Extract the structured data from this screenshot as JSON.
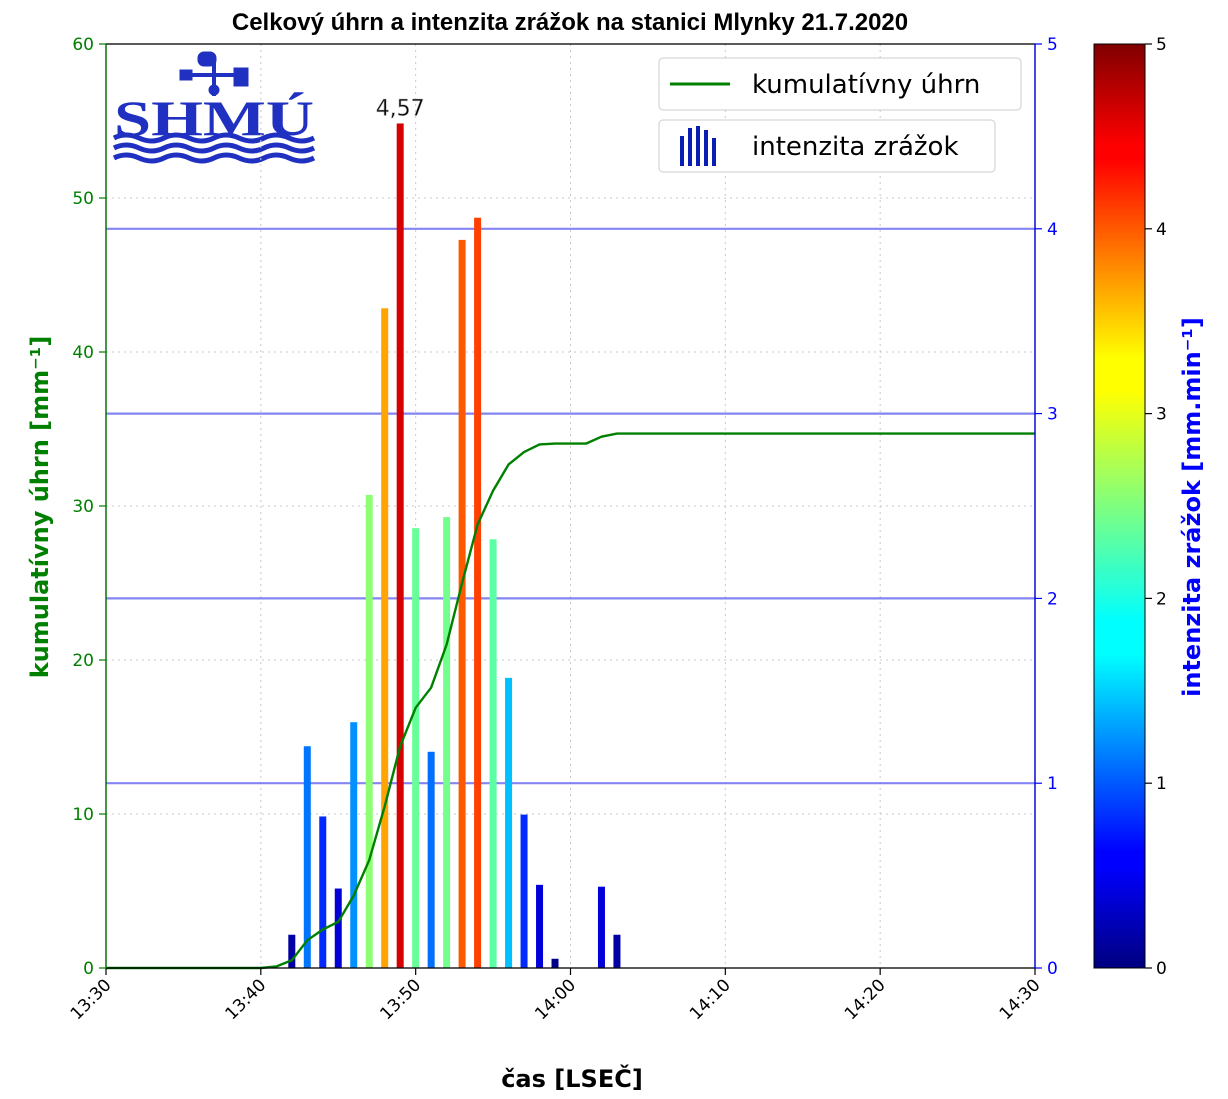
{
  "chart_data": {
    "type": "bar+line",
    "title": "Celkový úhrn a intenzita zrážok na stanici Mlynky 21.7.2020",
    "xlabel": "čas [LSEČ]",
    "ylabel_left": "kumulatívny úhrn [mm⁻¹]",
    "ylabel_right": "intenzita zrážok [mm.min⁻¹]",
    "xlim": [
      "13:30",
      "14:30"
    ],
    "ylim_left": [
      0,
      60
    ],
    "ylim_right": [
      0,
      5
    ],
    "x_ticks": [
      "13:30",
      "13:40",
      "13:50",
      "14:00",
      "14:10",
      "14:20",
      "14:30"
    ],
    "y_left_ticks": [
      "0",
      "10",
      "20",
      "30",
      "40",
      "50",
      "60"
    ],
    "y_right_ticks": [
      "0",
      "1",
      "2",
      "3",
      "4",
      "5"
    ],
    "colorbar_ticks": [
      "0",
      "1",
      "2",
      "3",
      "4",
      "5"
    ],
    "colorbar_range": [
      0,
      5
    ],
    "grid": true,
    "legend_position": "top-right",
    "series": [
      {
        "name": "kumulatívny úhrn",
        "type": "line",
        "axis": "left",
        "color": "#008000",
        "x": [
          "13:30",
          "13:40",
          "13:41",
          "13:42",
          "13:43",
          "13:44",
          "13:45",
          "13:46",
          "13:47",
          "13:48",
          "13:49",
          "13:50",
          "13:51",
          "13:52",
          "13:53",
          "13:54",
          "13:55",
          "13:56",
          "13:57",
          "13:58",
          "13:59",
          "14:00",
          "14:01",
          "14:02",
          "14:03",
          "14:10",
          "14:20",
          "14:30"
        ],
        "values": [
          0,
          0,
          0.1,
          0.5,
          1.8,
          2.5,
          3.0,
          4.7,
          7.0,
          10.5,
          14.4,
          16.9,
          18.2,
          21.0,
          25.0,
          28.8,
          31.0,
          32.7,
          33.5,
          34.0,
          34.05,
          34.05,
          34.05,
          34.5,
          34.7,
          34.7,
          34.7,
          34.7
        ]
      },
      {
        "name": "intenzita zrážok",
        "type": "bar",
        "axis": "right",
        "x": [
          "13:42",
          "13:43",
          "13:44",
          "13:45",
          "13:46",
          "13:47",
          "13:48",
          "13:49",
          "13:50",
          "13:51",
          "13:52",
          "13:53",
          "13:54",
          "13:55",
          "13:56",
          "13:57",
          "13:58",
          "13:59",
          "14:02",
          "14:03"
        ],
        "values": [
          0.18,
          1.2,
          0.82,
          0.43,
          1.33,
          2.56,
          3.57,
          4.57,
          2.38,
          1.17,
          2.44,
          3.94,
          4.06,
          2.32,
          1.57,
          0.83,
          0.45,
          0.05,
          0.44,
          0.18
        ]
      }
    ],
    "annotations": [
      {
        "text": "4,57",
        "x": "13:49",
        "y": 4.57
      }
    ],
    "hlines_right": [
      1,
      2,
      3,
      4
    ]
  },
  "colors": {
    "left_axis": "#008000",
    "right_axis": "#0000ff",
    "hline": "#6f6ff0",
    "grid": "#c8c8c8",
    "logo": "#2030c0"
  },
  "logo": {
    "text": "SHMÚ",
    "icon": "weather-vane-icon"
  }
}
